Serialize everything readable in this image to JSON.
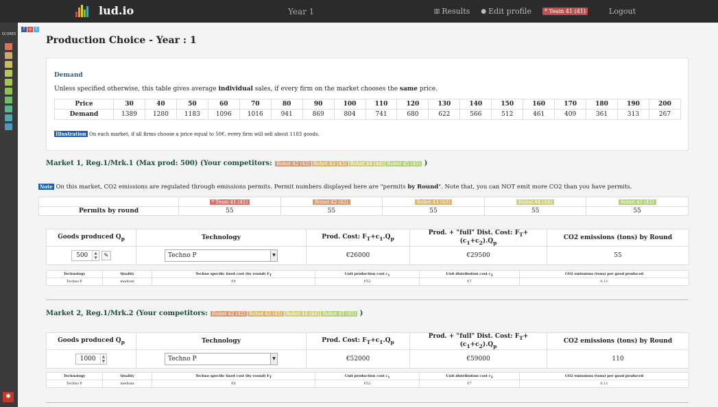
{
  "nav": {
    "brand": "lud.io",
    "year": "Year 1",
    "results": "Results",
    "edit_profile": "Edit profile",
    "team": "* Team 41 (41)",
    "logout": "Logout"
  },
  "sidebar": {
    "label": "SCORES",
    "colors": [
      "#e06c5a",
      "#d4a76a",
      "#c9bd5c",
      "#b8c453",
      "#a5c64d",
      "#8dc34e",
      "#6cc065",
      "#55b98f",
      "#4aa8b0",
      "#4b9ac1"
    ]
  },
  "page_title": "Production Choice - Year : 1",
  "demand": {
    "title": "Demand",
    "desc_pre": "Unless specified otherwise, this table gives average ",
    "desc_b1": "individual",
    "desc_mid": " sales, if every firm on the market chooses the ",
    "desc_b2": "same",
    "desc_post": " price.",
    "row_labels": [
      "Price",
      "Demand"
    ],
    "prices": [
      "30",
      "40",
      "50",
      "60",
      "70",
      "80",
      "90",
      "100",
      "110",
      "120",
      "130",
      "140",
      "150",
      "160",
      "170",
      "180",
      "190",
      "200"
    ],
    "demands": [
      "1389",
      "1280",
      "1183",
      "1096",
      "1016",
      "941",
      "869",
      "804",
      "741",
      "680",
      "622",
      "566",
      "512",
      "461",
      "409",
      "361",
      "313",
      "267"
    ],
    "illus_tag": "Illustration",
    "illus_text": " On each market, if all firms choose a price equal to 50€, every firm will sell about 1183 goods."
  },
  "market1": {
    "title": "Market 1, Reg.1/Mrk.1 (Max prod: 500) (Your competitors: ",
    "close": " )",
    "competitors": [
      {
        "label": "Robot 42 (42)",
        "color": "#d99a73"
      },
      {
        "label": "Robot 43 (43)",
        "color": "#dcb56c"
      },
      {
        "label": "Robot 44 (44)",
        "color": "#cfcf7f"
      },
      {
        "label": "Robot 45 (45)",
        "color": "#b6d17c"
      }
    ],
    "note_tag": "Note",
    "note_pre": " On this market, CO2 emissions are regulated through emissions permits. Permit numbers displayed here are \"permits ",
    "note_b": "by Round",
    "note_post": "\". Note that, you can NOT emit more CO2 than you have permits.",
    "permits_label": "Permits by round",
    "permit_teams": [
      {
        "label": "* Team 41 (41)",
        "color": "#d9756b",
        "value": "55"
      },
      {
        "label": "Robot 42 (42)",
        "color": "#d99a73",
        "value": "55"
      },
      {
        "label": "Robot 43 (43)",
        "color": "#dcb56c",
        "value": "55"
      },
      {
        "label": "Robot 44 (44)",
        "color": "#cfcf7f",
        "value": "55"
      },
      {
        "label": "Robot 45 (45)",
        "color": "#b6d17c",
        "value": "55"
      }
    ],
    "goods": "500",
    "technology": "Techno P",
    "prod_cost": "€26000",
    "dist_cost": "€29500",
    "co2": "55",
    "tech": {
      "name": "Techno P",
      "quality": "medium",
      "fixed": "€0",
      "unit_prod": "€52",
      "unit_dist": "€7",
      "co2_per": "0.11"
    }
  },
  "market2": {
    "title": "Market 2, Reg.1/Mrk.2 (Your competitors: ",
    "close": " )",
    "competitors": [
      {
        "label": "Robot 42 (42)",
        "color": "#d99a73"
      },
      {
        "label": "Robot 43 (43)",
        "color": "#dcb56c"
      },
      {
        "label": "Robot 44 (44)",
        "color": "#cfcf7f"
      },
      {
        "label": "Robot 45 (45)",
        "color": "#b6d17c"
      }
    ],
    "goods": "1000",
    "technology": "Techno P",
    "prod_cost": "€52000",
    "dist_cost": "€59000",
    "co2": "110",
    "tech": {
      "name": "Techno P",
      "quality": "medium",
      "fixed": "€0",
      "unit_prod": "€52",
      "unit_dist": "€7",
      "co2_per": "0.11"
    }
  },
  "headers": {
    "goods": "Goods produced Q",
    "goods_sub": "p",
    "technology": "Technology",
    "prod_cost": "Prod. Cost: F",
    "prod_cost_rest": "+c",
    "prod_cost_tail": ".Q",
    "dist_cost": "Prod. + \"full\" Dist. Cost: F",
    "dist_cost_rest": "+(c",
    "dist_cost_mid": "+c",
    "dist_cost_tail": ").Q",
    "co2": "CO2 emissions (tons) by Round",
    "t_technology": "Technology",
    "t_quality": "Quality",
    "t_fixed": "Techno specific fixed cost (by round) F",
    "t_unit_prod": "Unit production cost c",
    "t_unit_dist": "Unit distribution cost c",
    "t_co2": "CO2 emissions (tons) per good produced"
  }
}
